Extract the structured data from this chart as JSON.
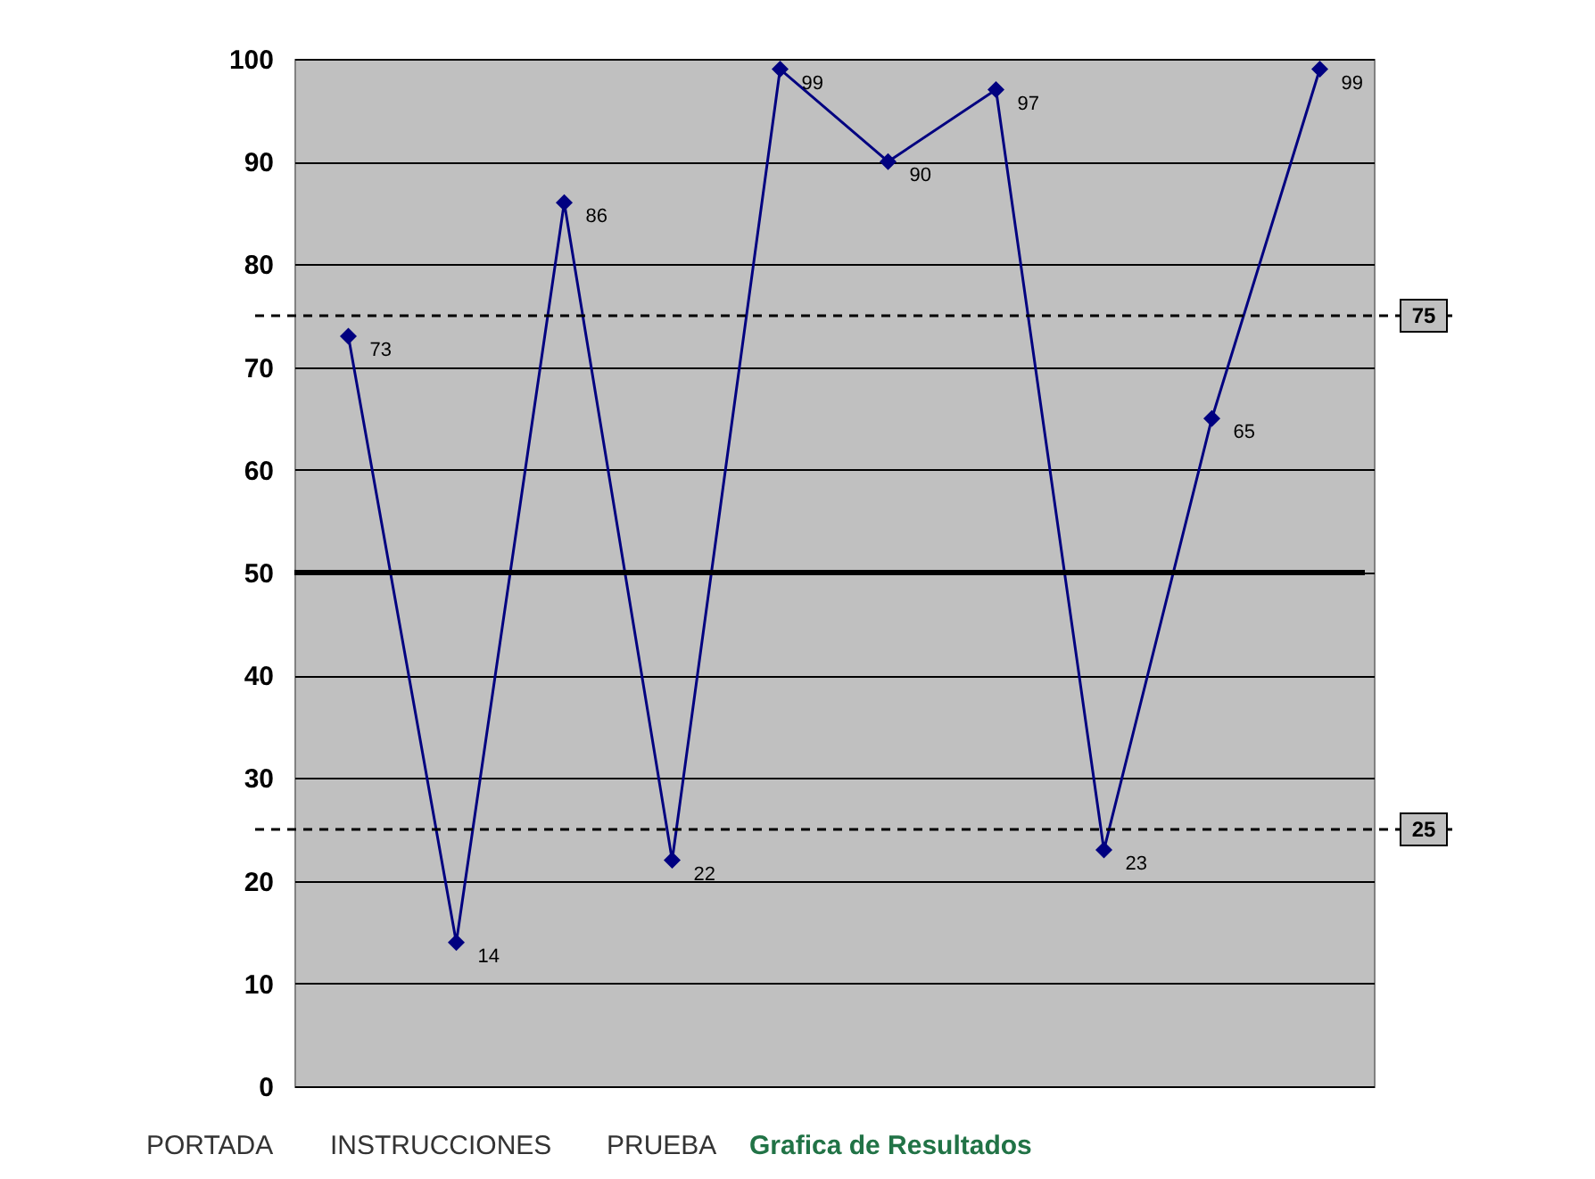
{
  "chart_data": {
    "type": "line",
    "categories": [
      null,
      null,
      null,
      null,
      null,
      null,
      null,
      null,
      null,
      null
    ],
    "series": [
      {
        "color": "#000080",
        "values": [
          73,
          14,
          86,
          22,
          99,
          90,
          97,
          23,
          65,
          99
        ]
      }
    ],
    "ylim": [
      0,
      100
    ],
    "yticks": [
      0,
      10,
      20,
      30,
      40,
      50,
      60,
      70,
      80,
      90,
      100
    ],
    "grid": "y",
    "tick_labels": "y",
    "marker": "diamond",
    "line_style": "solid",
    "data_labels": true,
    "ref_lines": [
      {
        "axis": "y",
        "value": 50,
        "color": "#000000",
        "line_style": "solid"
      },
      {
        "axis": "y",
        "value": 75,
        "label": "75",
        "color": "#000000",
        "line_style": "dashed"
      },
      {
        "axis": "y",
        "value": 25,
        "label": "25",
        "color": "#000000",
        "line_style": "dashed"
      }
    ],
    "annotations": [
      "PORTADA",
      "INSTRUCCIONES",
      "PRUEBA",
      "Grafica de Resultados"
    ]
  }
}
